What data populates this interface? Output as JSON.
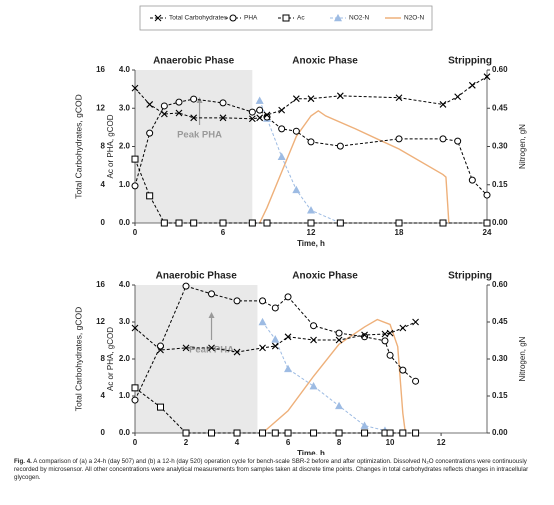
{
  "chart_data": [
    {
      "type": "line",
      "x_label": "Time, h",
      "y_label": "Total Carbohydrates, gCOD",
      "y3_label": "Ac or PHA, gCOD",
      "y2_label": "Nitrogen, gN",
      "xlim": [
        0,
        24
      ],
      "xticks": [
        0,
        6,
        12,
        18,
        24
      ],
      "ylim": [
        0,
        16
      ],
      "yticks": [
        0,
        4,
        8,
        12,
        16
      ],
      "y3lim": [
        0,
        4
      ],
      "y3ticks": [
        {
          "value": 0,
          "label": "0.0"
        },
        {
          "value": 1,
          "label": "1.0"
        },
        {
          "value": 2,
          "label": "2.0"
        },
        {
          "value": 3,
          "label": "3.0"
        },
        {
          "value": 4,
          "label": "4.0"
        }
      ],
      "y2lim": [
        0,
        0.6
      ],
      "y2ticks": [
        {
          "value": 0,
          "label": "0.00"
        },
        0.15,
        {
          "value": 0.3,
          "label": "0.30"
        },
        0.45,
        {
          "value": 0.6,
          "label": "0.60"
        }
      ],
      "phases": [
        {
          "label": "Anaerobic Phase",
          "start": 0,
          "end": 8
        },
        {
          "label": "Anoxic Phase"
        },
        {
          "label": "Stripping"
        }
      ],
      "annotation": {
        "text": "Peak PHA",
        "x": 4.4
      },
      "series": [
        {
          "name": "Total Carbohydrates",
          "color": "#000000",
          "axis": "y",
          "marker": "x",
          "dash": true,
          "x": [
            0,
            1,
            2,
            3,
            4,
            6,
            8,
            8.5,
            9,
            10,
            11,
            12,
            14,
            18,
            21,
            22,
            23,
            24
          ],
          "values": [
            14.1,
            12.4,
            11.4,
            11.5,
            11.0,
            11.0,
            10.9,
            11.0,
            11.3,
            11.8,
            13.0,
            13.0,
            13.3,
            13.1,
            12.4,
            13.2,
            14.4,
            15.3
          ]
        },
        {
          "name": "PHA",
          "color": "#000000",
          "axis": "y3",
          "marker": "circle",
          "dash": true,
          "x": [
            0,
            1,
            2,
            3,
            4,
            6,
            8,
            8.5,
            9,
            10,
            11,
            12,
            14,
            18,
            21,
            22,
            23,
            24
          ],
          "values": [
            0.97,
            2.35,
            3.06,
            3.16,
            3.24,
            3.14,
            2.9,
            2.95,
            2.77,
            2.46,
            2.4,
            2.12,
            2.01,
            2.2,
            2.2,
            2.14,
            1.12,
            0.73
          ]
        },
        {
          "name": "Ac",
          "color": "#000000",
          "axis": "y3",
          "marker": "square",
          "dash": true,
          "x": [
            0,
            1,
            2,
            3,
            4,
            6,
            8,
            9,
            12,
            14,
            18,
            21,
            24
          ],
          "values": [
            1.67,
            0.71,
            0,
            0,
            0,
            0,
            0,
            0,
            0,
            0,
            0,
            0,
            0
          ]
        },
        {
          "name": "NO2-N",
          "color": "#9dbbe3",
          "axis": "y2",
          "marker": "triangle",
          "dash": true,
          "x": [
            8.5,
            9,
            10,
            11,
            12,
            14
          ],
          "values": [
            0.48,
            0.41,
            0.26,
            0.13,
            0.05,
            0
          ]
        },
        {
          "name": "N2O-N",
          "color": "#eeb07a",
          "axis": "y2",
          "marker": "none",
          "dash": false,
          "x": [
            8.5,
            9,
            10,
            11,
            12,
            12.5,
            13,
            15,
            18,
            21,
            21.2,
            21.4
          ],
          "values": [
            0,
            0.06,
            0.2,
            0.34,
            0.42,
            0.44,
            0.42,
            0.37,
            0.29,
            0.19,
            0.18,
            0
          ]
        }
      ]
    },
    {
      "type": "line",
      "x_label": "Time, h",
      "y_label": "Total Carbohydrates, gCOD",
      "y3_label": "Ac or PHA, gCOD",
      "y2_label": "Nitrogen, gN",
      "xlim": [
        0,
        13.8
      ],
      "xticks": [
        0,
        2,
        4,
        6,
        8,
        10,
        12
      ],
      "ylim": [
        0,
        16
      ],
      "yticks": [
        0,
        4,
        8,
        12,
        16
      ],
      "y3lim": [
        0,
        4
      ],
      "y3ticks": [
        {
          "value": 0,
          "label": "0.0"
        },
        {
          "value": 1,
          "label": "1.0"
        },
        {
          "value": 2,
          "label": "2.0"
        },
        {
          "value": 3,
          "label": "3.0"
        },
        {
          "value": 4,
          "label": "4.0"
        }
      ],
      "y2lim": [
        0,
        0.6
      ],
      "y2ticks": [
        {
          "value": 0,
          "label": "0.00"
        },
        0.15,
        {
          "value": 0.3,
          "label": "0.30"
        },
        0.45,
        {
          "value": 0.6,
          "label": "0.60"
        }
      ],
      "phases": [
        {
          "label": "Anaerobic Phase",
          "start": 0,
          "end": 4.8
        },
        {
          "label": "Anoxic Phase"
        },
        {
          "label": "Stripping"
        }
      ],
      "annotation": {
        "text": "Peak PHA",
        "x": 3
      },
      "series": [
        {
          "name": "Total Carbohydrates",
          "color": "#000000",
          "axis": "y",
          "marker": "x",
          "dash": true,
          "x": [
            0,
            1,
            2,
            3,
            4,
            5,
            5.5,
            6,
            7,
            8,
            9,
            9.8,
            10,
            10.5,
            11
          ],
          "values": [
            11.35,
            8.97,
            9.2,
            9.2,
            8.75,
            9.2,
            9.4,
            10.4,
            10.05,
            10.05,
            10.6,
            10.7,
            10.8,
            11.35,
            12.0
          ]
        },
        {
          "name": "PHA",
          "color": "#000000",
          "axis": "y3",
          "marker": "circle",
          "dash": true,
          "x": [
            0,
            1,
            2,
            3,
            4,
            5,
            5.5,
            6,
            7,
            8,
            9,
            9.8,
            10,
            10.5,
            11
          ],
          "values": [
            0.89,
            2.35,
            3.97,
            3.76,
            3.57,
            3.57,
            3.38,
            3.68,
            2.9,
            2.7,
            2.6,
            2.49,
            2.1,
            1.7,
            1.4
          ]
        },
        {
          "name": "Ac",
          "color": "#000000",
          "axis": "y3",
          "marker": "square",
          "dash": true,
          "x": [
            0,
            1,
            2,
            3,
            4,
            5,
            5.5,
            6,
            7,
            8,
            9,
            9.8,
            10,
            10.5,
            11
          ],
          "values": [
            1.22,
            0.7,
            0,
            0,
            0,
            0,
            0,
            0,
            0,
            0,
            0,
            0,
            0,
            0,
            0
          ]
        },
        {
          "name": "NO2-N",
          "color": "#9dbbe3",
          "axis": "y2",
          "marker": "triangle",
          "dash": true,
          "x": [
            5,
            5.5,
            6,
            7,
            8,
            9,
            9.8
          ],
          "values": [
            0.45,
            0.38,
            0.26,
            0.19,
            0.11,
            0.03,
            0.01
          ]
        },
        {
          "name": "N2O-N",
          "color": "#eeb07a",
          "axis": "y2",
          "marker": "none",
          "dash": false,
          "x": [
            5,
            6,
            7,
            8,
            9,
            9.5,
            10,
            10.3,
            10.5,
            10.6
          ],
          "values": [
            0,
            0.09,
            0.23,
            0.36,
            0.43,
            0.46,
            0.44,
            0.35,
            0.08,
            0
          ]
        }
      ]
    }
  ],
  "caption": {
    "label": "Fig. 4.",
    "text": "A comparison of (a) a 24-h (day 507) and (b) a 12-h (day 520) operation cycle for bench-scale SBR-2 before and after optimization. Dissolved N₂O concentrations were continuously recorded by microsensor. All other concentrations were analytical measurements from samples taken at discrete time points. Changes in total carbohydrates reflects changes in intracellular glycogen."
  }
}
